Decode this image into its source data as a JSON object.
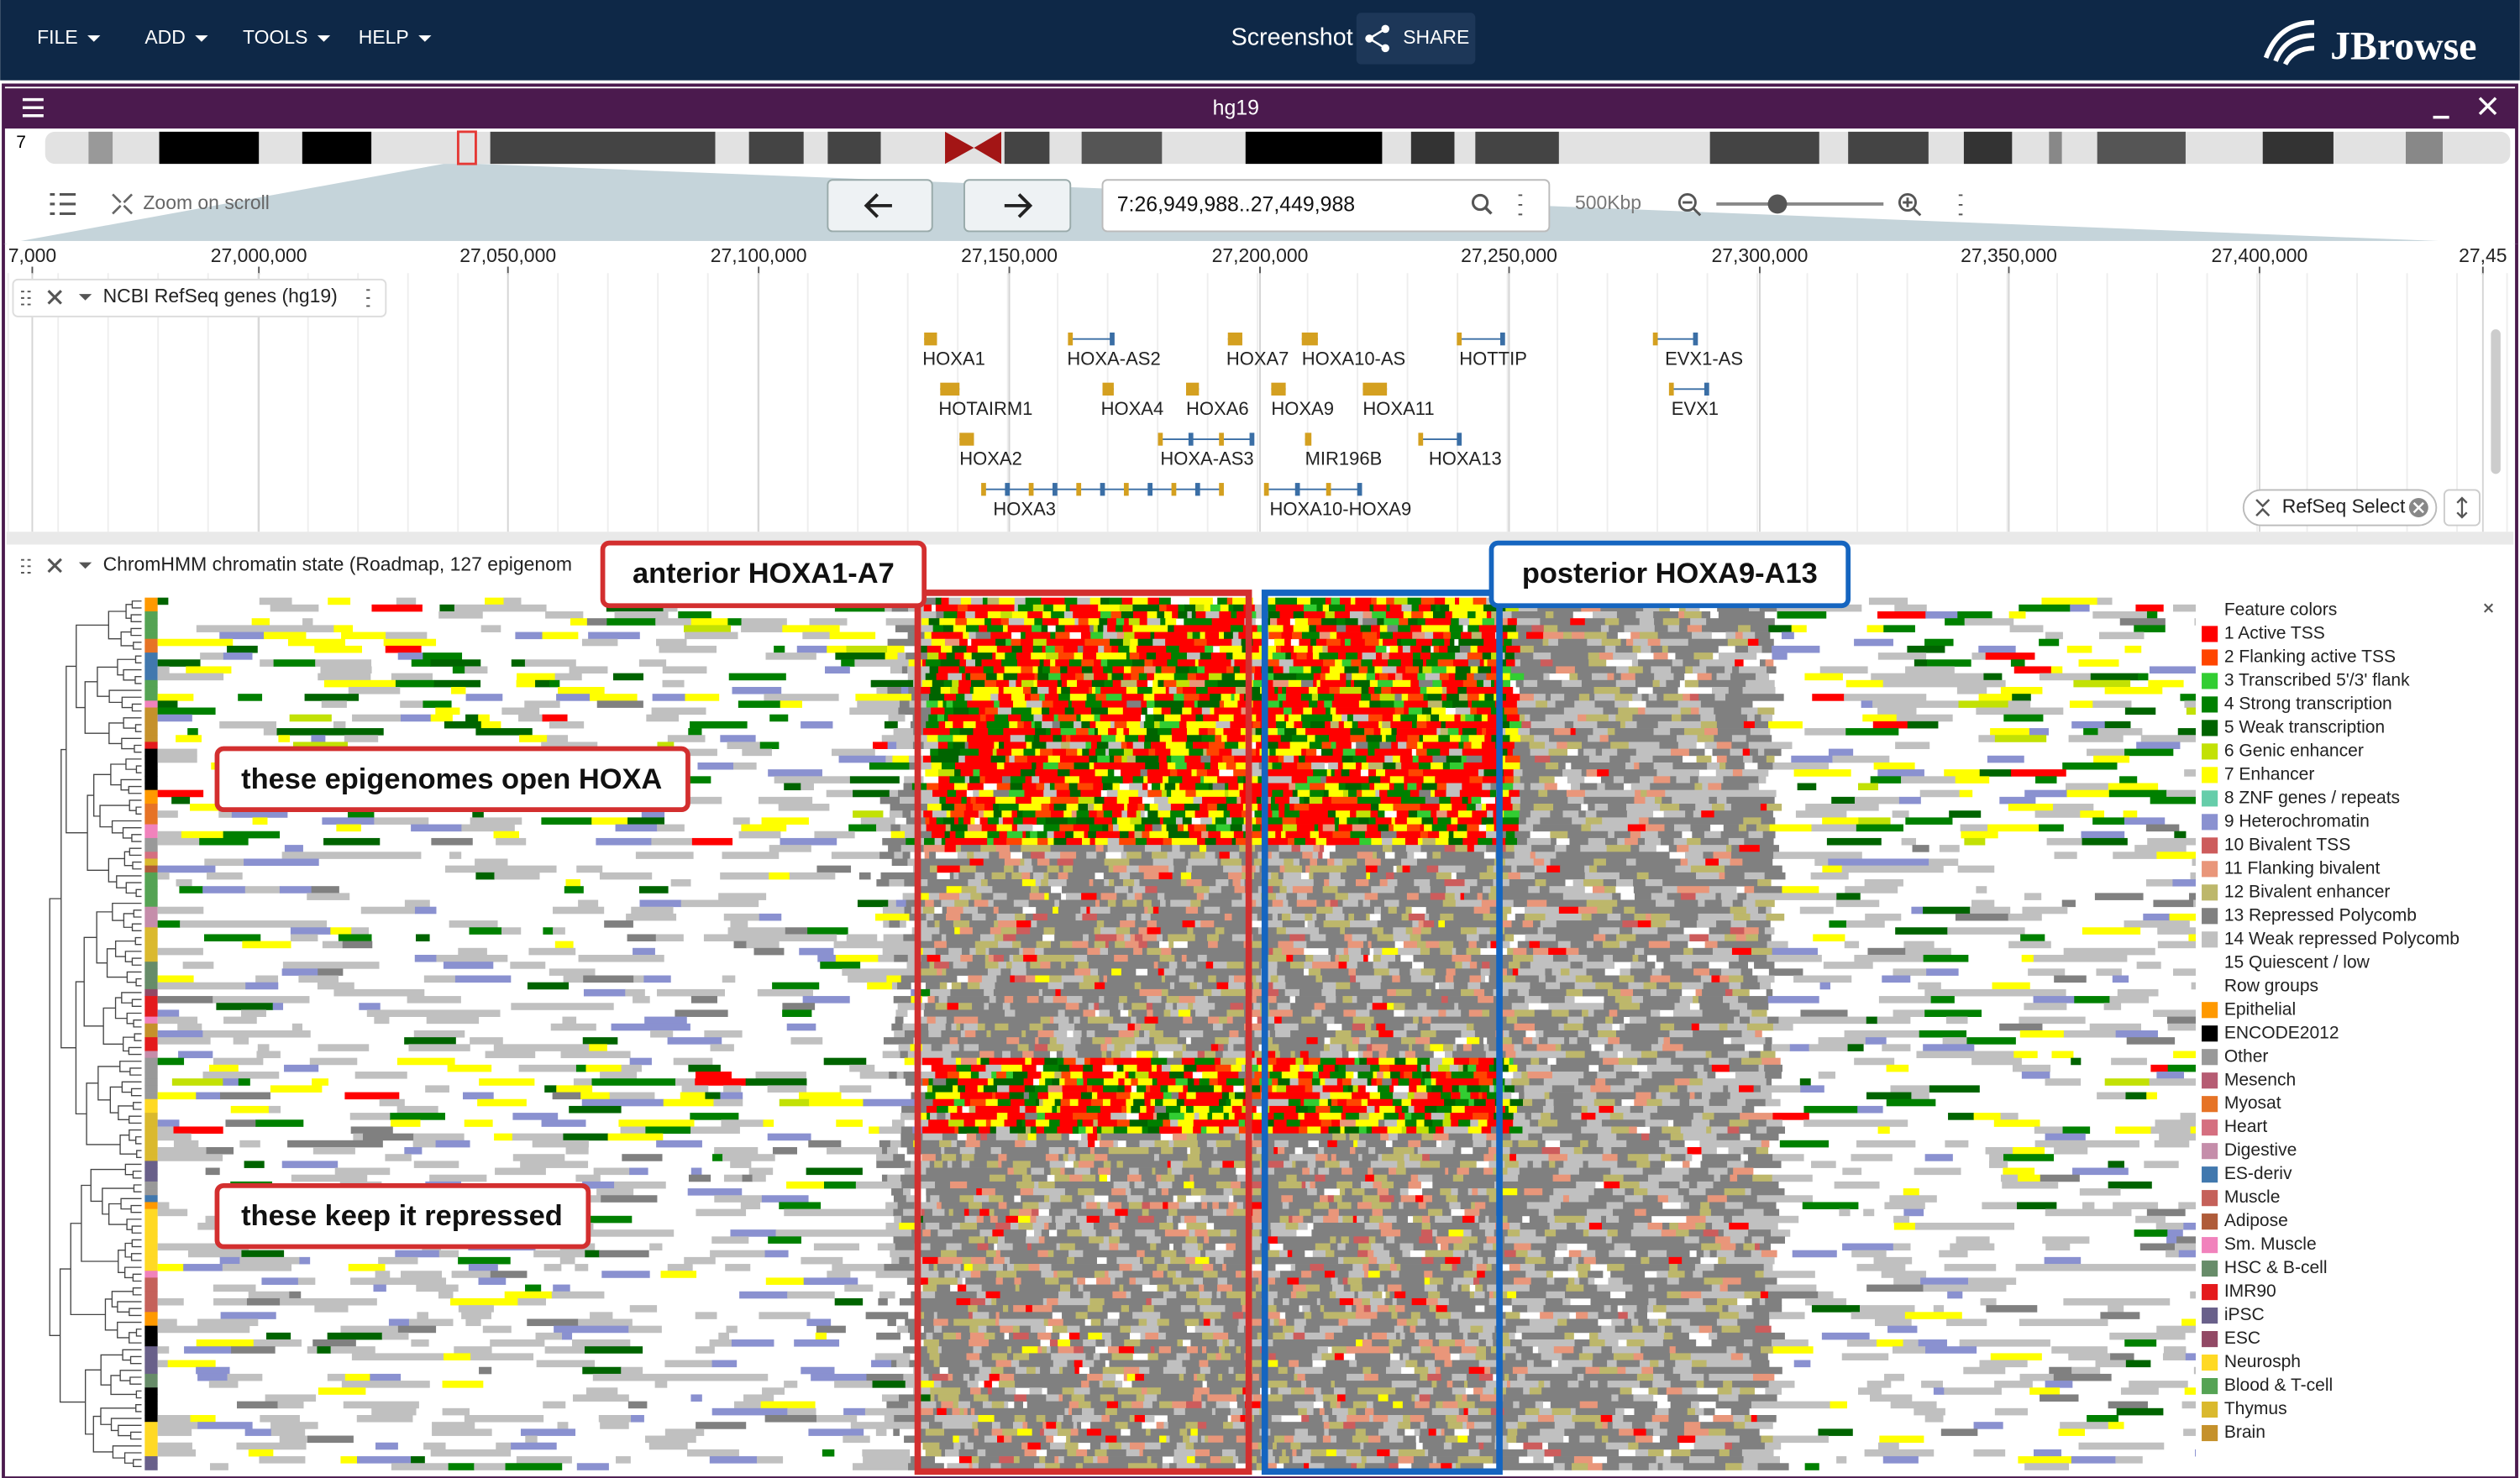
{
  "menu": [
    "FILE",
    "ADD",
    "TOOLS",
    "HELP"
  ],
  "header": {
    "screenshot": "Screenshot",
    "share": "SHARE",
    "brand": "JBrowse"
  },
  "view": {
    "title": "hg19",
    "chromosome": "7",
    "zoom_hint": "Zoom on scroll",
    "location": "7:26,949,988..27,449,988",
    "span": "500Kbp"
  },
  "ruler": [
    "7,000",
    "27,000,000",
    "27,050,000",
    "27,100,000",
    "27,150,000",
    "27,200,000",
    "27,250,000",
    "27,300,000",
    "27,350,000",
    "27,400,000",
    "27,45"
  ],
  "gene_track": {
    "name": "NCBI RefSeq genes (hg19)",
    "genes": [
      "HOXA1",
      "HOXA-AS2",
      "HOXA7",
      "HOXA10-AS",
      "HOTTIP",
      "EVX1-AS",
      "HOTAIRM1",
      "HOXA4",
      "HOXA6",
      "HOXA9",
      "HOXA11",
      "EVX1",
      "HOXA2",
      "HOXA-AS3",
      "MIR196B",
      "HOXA13",
      "HOXA3",
      "HOXA10-HOXA9"
    ],
    "chip": "RefSeq Select"
  },
  "chromhmm_track": {
    "name": "ChromHMM chromatin state (Roadmap, 127 epigenom",
    "annotations": [
      "anterior HOXA1-A7",
      "posterior HOXA9-A13",
      "these epigenomes open HOXA",
      "these keep it repressed"
    ],
    "legend": {
      "title": "Feature colors",
      "states": [
        {
          "label": "1 Active TSS",
          "color": "#ff0000"
        },
        {
          "label": "2 Flanking active TSS",
          "color": "#ff4500"
        },
        {
          "label": "3 Transcribed 5'/3' flank",
          "color": "#32cd32"
        },
        {
          "label": "4 Strong transcription",
          "color": "#008000"
        },
        {
          "label": "5 Weak transcription",
          "color": "#006400"
        },
        {
          "label": "6 Genic enhancer",
          "color": "#c2e105"
        },
        {
          "label": "7 Enhancer",
          "color": "#ffff00"
        },
        {
          "label": "8 ZNF genes / repeats",
          "color": "#66cdaa"
        },
        {
          "label": "9 Heterochromatin",
          "color": "#8a91d0"
        },
        {
          "label": "10 Bivalent TSS",
          "color": "#cd5c5c"
        },
        {
          "label": "11 Flanking bivalent",
          "color": "#e9967a"
        },
        {
          "label": "12 Bivalent enhancer",
          "color": "#bdb76b"
        },
        {
          "label": "13 Repressed Polycomb",
          "color": "#808080"
        },
        {
          "label": "14 Weak repressed Polycomb",
          "color": "#c0c0c0"
        },
        {
          "label": "15 Quiescent / low",
          "color": "#ffffff"
        }
      ],
      "groups_title": "Row groups",
      "groups": [
        {
          "label": "Epithelial",
          "color": "#ff9900"
        },
        {
          "label": "ENCODE2012",
          "color": "#000000"
        },
        {
          "label": "Other",
          "color": "#999999"
        },
        {
          "label": "Mesench",
          "color": "#b65c73"
        },
        {
          "label": "Myosat",
          "color": "#e67326"
        },
        {
          "label": "Heart",
          "color": "#d56f80"
        },
        {
          "label": "Digestive",
          "color": "#c58daa"
        },
        {
          "label": "ES-deriv",
          "color": "#4178ae"
        },
        {
          "label": "Muscle",
          "color": "#c5615a"
        },
        {
          "label": "Adipose",
          "color": "#af5b39"
        },
        {
          "label": "Sm. Muscle",
          "color": "#f182bc"
        },
        {
          "label": "HSC & B-cell",
          "color": "#678c69"
        },
        {
          "label": "IMR90",
          "color": "#e41a1c"
        },
        {
          "label": "iPSC",
          "color": "#69608a"
        },
        {
          "label": "ESC",
          "color": "#924965"
        },
        {
          "label": "Neurosph",
          "color": "#ffd924"
        },
        {
          "label": "Blood & T-cell",
          "color": "#55a354"
        },
        {
          "label": "Thymus",
          "color": "#dab92e"
        },
        {
          "label": "Brain",
          "color": "#c5912b"
        }
      ]
    }
  }
}
